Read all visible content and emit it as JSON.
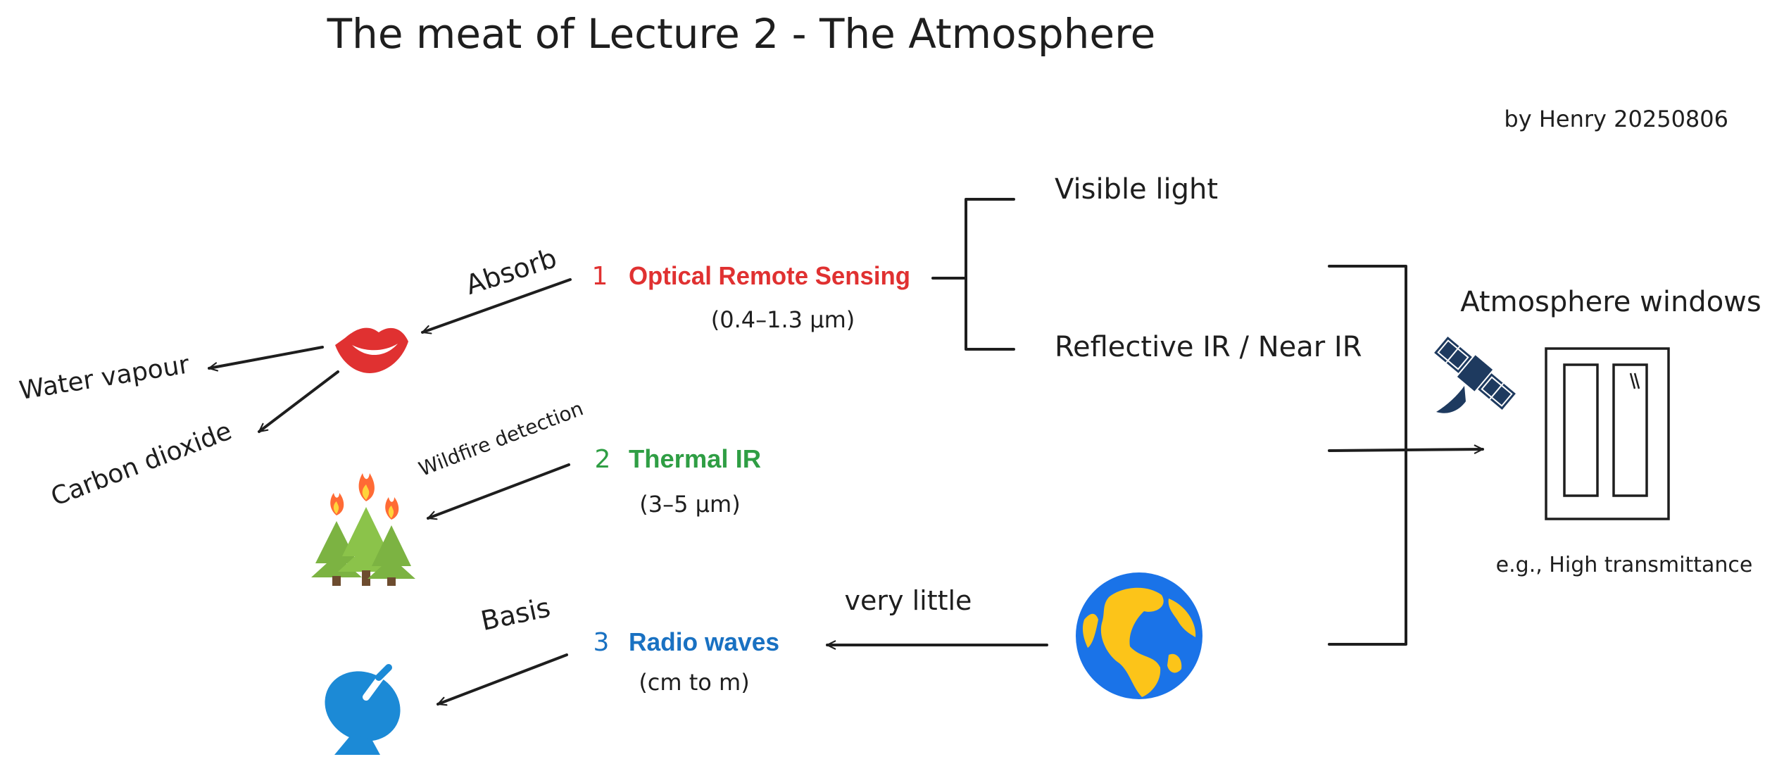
{
  "title": "The meat of Lecture 2 - The Atmosphere",
  "author": "by Henry 20250806",
  "bands": [
    {
      "number": "1",
      "name": "Optical Remote Sensing",
      "range": "(0.4–1.3 µm)",
      "color": "#e03131"
    },
    {
      "number": "2",
      "name": "Thermal IR",
      "range": "(3–5 µm)",
      "color": "#2f9e44"
    },
    {
      "number": "3",
      "name": "Radio waves",
      "range": "(cm to m)",
      "color": "#1971c2"
    }
  ],
  "optical_sub": {
    "visible": "Visible light",
    "near_ir": "Reflective IR / Near IR"
  },
  "left_labels": {
    "absorb": "Absorb",
    "water_vapour": "Water vapour",
    "carbon_dioxide": "Carbon dioxide",
    "wildfire": "Wildfire detection",
    "basis": "Basis"
  },
  "very_little": "very little",
  "windows": {
    "title": "Atmosphere windows",
    "note": "e.g., High transmittance"
  },
  "icons": [
    "lips-icon",
    "burning-trees-icon",
    "satellite-dish-icon",
    "globe-icon",
    "satellite-icon",
    "window-icon"
  ]
}
